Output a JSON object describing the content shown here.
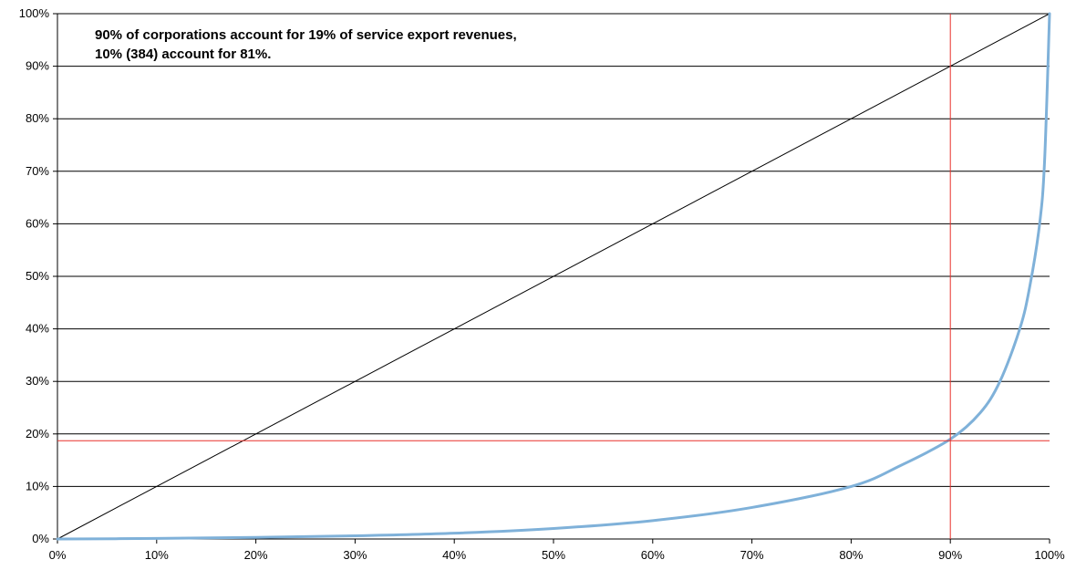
{
  "chart_data": {
    "type": "line",
    "title": "",
    "xlabel": "",
    "ylabel": "",
    "xlim": [
      0,
      100
    ],
    "ylim": [
      0,
      100
    ],
    "x_tick_labels": [
      "0%",
      "10%",
      "20%",
      "30%",
      "40%",
      "50%",
      "60%",
      "70%",
      "80%",
      "90%",
      "100%"
    ],
    "y_tick_labels": [
      "0%",
      "10%",
      "20%",
      "30%",
      "40%",
      "50%",
      "60%",
      "70%",
      "80%",
      "90%",
      "100%"
    ],
    "grid": "horizontal",
    "annotation": [
      "90% of corporations account for 19% of service export revenues,",
      "10% (384) account for 81%."
    ],
    "series": [
      {
        "style": "curve",
        "color": "#7fb1d9",
        "x": [
          0,
          10,
          20,
          30,
          40,
          50,
          60,
          70,
          80,
          85,
          90,
          93,
          95,
          97,
          98,
          99,
          99.5,
          100
        ],
        "y": [
          0,
          0.1,
          0.3,
          0.6,
          1.1,
          2,
          3.5,
          6,
          10,
          14,
          19,
          24,
          30,
          40,
          48,
          60,
          72,
          100
        ]
      },
      {
        "style": "equality-line",
        "color": "#000000",
        "x": [
          0,
          100
        ],
        "y": [
          0,
          100
        ]
      }
    ],
    "reference_lines": [
      {
        "orientation": "vertical",
        "value": 90,
        "color": "#e8302a"
      },
      {
        "orientation": "horizontal",
        "value": 18.7,
        "color": "#e8302a"
      }
    ]
  }
}
